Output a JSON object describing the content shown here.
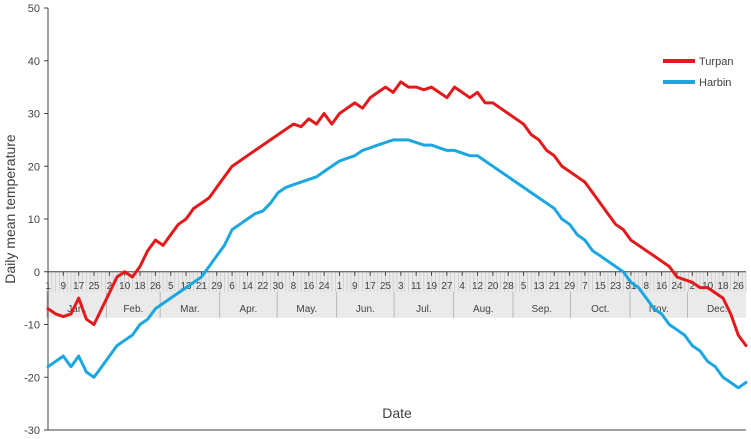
{
  "chart_data": {
    "type": "line",
    "title": "",
    "xlabel": "Date",
    "ylabel": "Daily mean temperature",
    "ylim": [
      -30,
      50
    ],
    "yticks": [
      -30,
      -20,
      -10,
      0,
      10,
      20,
      30,
      40,
      50
    ],
    "xlim": [
      1,
      365
    ],
    "grid": false,
    "legend_position": "top-right",
    "months": [
      {
        "label": "Jan.",
        "start": 1,
        "end": 31
      },
      {
        "label": "Feb.",
        "start": 32,
        "end": 59
      },
      {
        "label": "Mar.",
        "start": 60,
        "end": 90
      },
      {
        "label": "Apr.",
        "start": 91,
        "end": 120
      },
      {
        "label": "May.",
        "start": 121,
        "end": 151
      },
      {
        "label": "Jun.",
        "start": 152,
        "end": 181
      },
      {
        "label": "Jul.",
        "start": 182,
        "end": 212
      },
      {
        "label": "Aug.",
        "start": 213,
        "end": 243
      },
      {
        "label": "Sep.",
        "start": 244,
        "end": 273
      },
      {
        "label": "Oct.",
        "start": 274,
        "end": 304
      },
      {
        "label": "Nov.",
        "start": 305,
        "end": 334
      },
      {
        "label": "Dec.",
        "start": 335,
        "end": 365
      }
    ],
    "day_ticks": [
      {
        "x": 1,
        "label": "1"
      },
      {
        "x": 9,
        "label": "9"
      },
      {
        "x": 17,
        "label": "17"
      },
      {
        "x": 25,
        "label": "25"
      },
      {
        "x": 33,
        "label": "2"
      },
      {
        "x": 41,
        "label": "10"
      },
      {
        "x": 49,
        "label": "18"
      },
      {
        "x": 57,
        "label": "26"
      },
      {
        "x": 65,
        "label": "5"
      },
      {
        "x": 73,
        "label": "13"
      },
      {
        "x": 81,
        "label": "21"
      },
      {
        "x": 89,
        "label": "29"
      },
      {
        "x": 97,
        "label": "6"
      },
      {
        "x": 105,
        "label": "14"
      },
      {
        "x": 113,
        "label": "22"
      },
      {
        "x": 121,
        "label": "30"
      },
      {
        "x": 129,
        "label": "8"
      },
      {
        "x": 137,
        "label": "16"
      },
      {
        "x": 145,
        "label": "24"
      },
      {
        "x": 153,
        "label": "1"
      },
      {
        "x": 161,
        "label": "9"
      },
      {
        "x": 169,
        "label": "17"
      },
      {
        "x": 177,
        "label": "25"
      },
      {
        "x": 185,
        "label": "3"
      },
      {
        "x": 193,
        "label": "11"
      },
      {
        "x": 201,
        "label": "19"
      },
      {
        "x": 209,
        "label": "27"
      },
      {
        "x": 217,
        "label": "4"
      },
      {
        "x": 225,
        "label": "12"
      },
      {
        "x": 233,
        "label": "20"
      },
      {
        "x": 241,
        "label": "28"
      },
      {
        "x": 249,
        "label": "5"
      },
      {
        "x": 257,
        "label": "13"
      },
      {
        "x": 265,
        "label": "21"
      },
      {
        "x": 273,
        "label": "29"
      },
      {
        "x": 281,
        "label": "7"
      },
      {
        "x": 289,
        "label": "15"
      },
      {
        "x": 297,
        "label": "23"
      },
      {
        "x": 305,
        "label": "31"
      },
      {
        "x": 313,
        "label": "8"
      },
      {
        "x": 321,
        "label": "16"
      },
      {
        "x": 329,
        "label": "24"
      },
      {
        "x": 337,
        "label": "2"
      },
      {
        "x": 345,
        "label": "10"
      },
      {
        "x": 353,
        "label": "18"
      },
      {
        "x": 361,
        "label": "26"
      }
    ],
    "series": [
      {
        "name": "Turpan",
        "color": "#e31a1c",
        "x": [
          1,
          5,
          9,
          13,
          17,
          21,
          25,
          29,
          33,
          37,
          41,
          45,
          49,
          53,
          57,
          61,
          65,
          69,
          73,
          77,
          81,
          85,
          89,
          93,
          97,
          101,
          105,
          109,
          113,
          117,
          121,
          125,
          129,
          133,
          137,
          141,
          145,
          149,
          153,
          157,
          161,
          165,
          169,
          173,
          177,
          181,
          185,
          189,
          193,
          197,
          201,
          205,
          209,
          213,
          217,
          221,
          225,
          229,
          233,
          237,
          241,
          245,
          249,
          253,
          257,
          261,
          265,
          269,
          273,
          277,
          281,
          285,
          289,
          293,
          297,
          301,
          305,
          309,
          313,
          317,
          321,
          325,
          329,
          333,
          337,
          341,
          345,
          349,
          353,
          357,
          361,
          365
        ],
        "values": [
          -7,
          -8,
          -8.5,
          -8,
          -5,
          -9,
          -10,
          -7,
          -4,
          -1,
          0,
          -1,
          1,
          4,
          6,
          5,
          7,
          9,
          10,
          12,
          13,
          14,
          16,
          18,
          20,
          21,
          22,
          23,
          24,
          25,
          26,
          27,
          28,
          27.5,
          29,
          28,
          30,
          28,
          30,
          31,
          32,
          31,
          33,
          34,
          35,
          34,
          36,
          35,
          35,
          34.5,
          35,
          34,
          33,
          35,
          34,
          33,
          34,
          32,
          32,
          31,
          30,
          29,
          28,
          26,
          25,
          23,
          22,
          20,
          19,
          18,
          17,
          15,
          13,
          11,
          9,
          8,
          6,
          5,
          4,
          3,
          2,
          1,
          -1,
          -1.5,
          -2,
          -3,
          -3,
          -4,
          -5,
          -8,
          -12,
          -14
        ]
      },
      {
        "name": "Harbin",
        "color": "#1aa7e0",
        "x": [
          1,
          5,
          9,
          13,
          17,
          21,
          25,
          29,
          33,
          37,
          41,
          45,
          49,
          53,
          57,
          61,
          65,
          69,
          73,
          77,
          81,
          85,
          89,
          93,
          97,
          101,
          105,
          109,
          113,
          117,
          121,
          125,
          129,
          133,
          137,
          141,
          145,
          149,
          153,
          157,
          161,
          165,
          169,
          173,
          177,
          181,
          185,
          189,
          193,
          197,
          201,
          205,
          209,
          213,
          217,
          221,
          225,
          229,
          233,
          237,
          241,
          245,
          249,
          253,
          257,
          261,
          265,
          269,
          273,
          277,
          281,
          285,
          289,
          293,
          297,
          301,
          305,
          309,
          313,
          317,
          321,
          325,
          329,
          333,
          337,
          341,
          345,
          349,
          353,
          357,
          361,
          365
        ],
        "values": [
          -18,
          -17,
          -16,
          -18,
          -16,
          -19,
          -20,
          -18,
          -16,
          -14,
          -13,
          -12,
          -10,
          -9,
          -7,
          -6,
          -5,
          -4,
          -3,
          -2,
          -1,
          1,
          3,
          5,
          8,
          9,
          10,
          11,
          11.5,
          13,
          15,
          16,
          16.5,
          17,
          17.5,
          18,
          19,
          20,
          21,
          21.5,
          22,
          23,
          23.5,
          24,
          24.5,
          25,
          25,
          25,
          24.5,
          24,
          24,
          23.5,
          23,
          23,
          22.5,
          22,
          22,
          21,
          20,
          19,
          18,
          17,
          16,
          15,
          14,
          13,
          12,
          10,
          9,
          7,
          6,
          4,
          3,
          2,
          1,
          0,
          -2,
          -3,
          -5,
          -7,
          -8,
          -10,
          -11,
          -12,
          -14,
          -15,
          -17,
          -18,
          -20,
          -21,
          -22,
          -21
        ]
      }
    ]
  }
}
